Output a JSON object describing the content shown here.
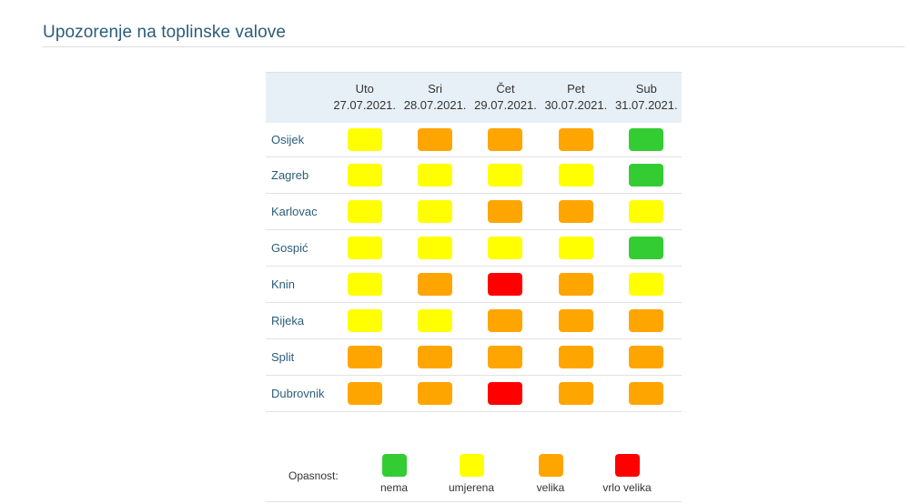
{
  "title": "Upozorenje na toplinske valove",
  "colors": {
    "nema": "#33cc33",
    "umjerena": "#ffff00",
    "velika": "#ffa500",
    "vrlo_velika": "#ff0000"
  },
  "days": [
    {
      "name": "Uto",
      "date": "27.07.2021."
    },
    {
      "name": "Sri",
      "date": "28.07.2021."
    },
    {
      "name": "Čet",
      "date": "29.07.2021."
    },
    {
      "name": "Pet",
      "date": "30.07.2021."
    },
    {
      "name": "Sub",
      "date": "31.07.2021."
    }
  ],
  "cities": [
    {
      "name": "Osijek",
      "levels": [
        "umjerena",
        "velika",
        "velika",
        "velika",
        "nema"
      ]
    },
    {
      "name": "Zagreb",
      "levels": [
        "umjerena",
        "umjerena",
        "umjerena",
        "umjerena",
        "nema"
      ]
    },
    {
      "name": "Karlovac",
      "levels": [
        "umjerena",
        "umjerena",
        "velika",
        "velika",
        "umjerena"
      ]
    },
    {
      "name": "Gospić",
      "levels": [
        "umjerena",
        "umjerena",
        "umjerena",
        "umjerena",
        "nema"
      ]
    },
    {
      "name": "Knin",
      "levels": [
        "umjerena",
        "velika",
        "vrlo_velika",
        "velika",
        "umjerena"
      ]
    },
    {
      "name": "Rijeka",
      "levels": [
        "umjerena",
        "umjerena",
        "velika",
        "velika",
        "velika"
      ]
    },
    {
      "name": "Split",
      "levels": [
        "velika",
        "velika",
        "velika",
        "velika",
        "velika"
      ]
    },
    {
      "name": "Dubrovnik",
      "levels": [
        "velika",
        "velika",
        "vrlo_velika",
        "velika",
        "velika"
      ]
    }
  ],
  "legend": {
    "label": "Opasnost:",
    "items": [
      {
        "key": "nema",
        "text": "nema"
      },
      {
        "key": "umjerena",
        "text": "umjerena"
      },
      {
        "key": "velika",
        "text": "velika"
      },
      {
        "key": "vrlo_velika",
        "text": "vrlo velika"
      }
    ]
  }
}
